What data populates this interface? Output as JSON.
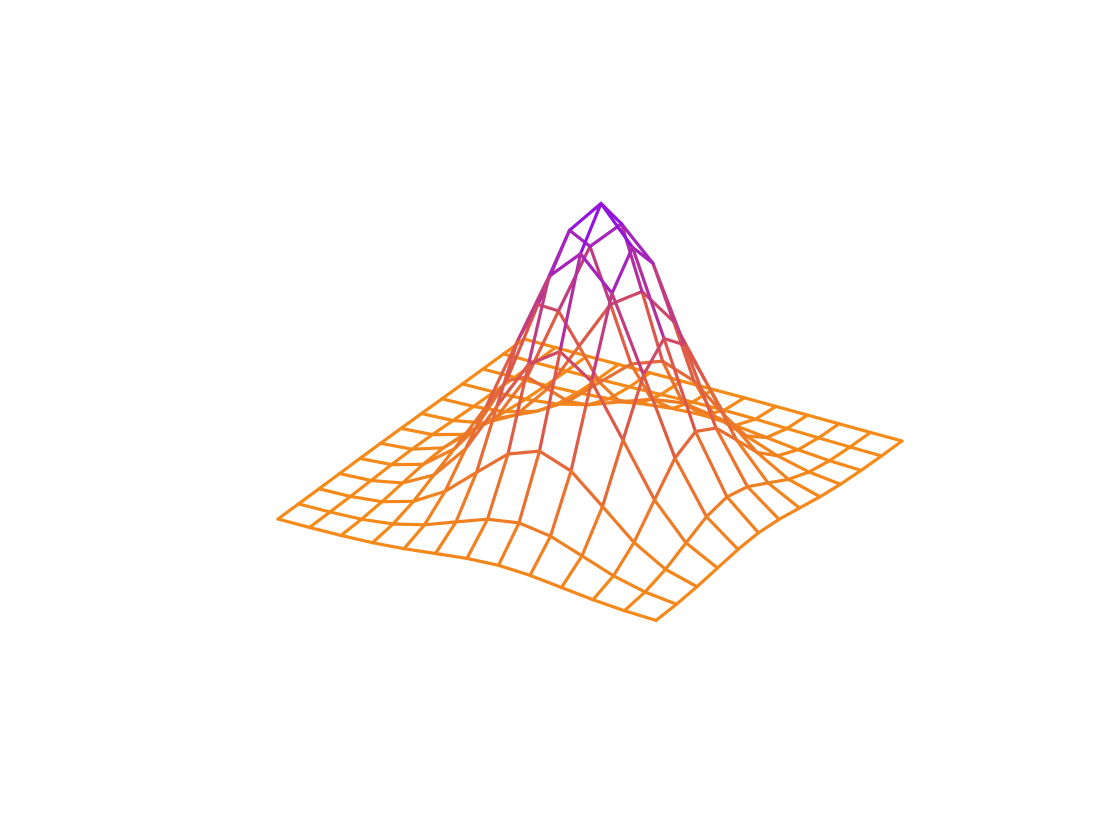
{
  "chart_data": {
    "type": "surface-wireframe",
    "title": "",
    "xlabel": "",
    "ylabel": "",
    "zlabel": "",
    "axes_visible": false,
    "grid": false,
    "legend": "none",
    "surface": {
      "function": "gaussian bump",
      "x_range": [
        -3,
        3
      ],
      "y_range": [
        -3,
        3
      ],
      "grid_count": 13,
      "peak_value": 1.0,
      "peak_location": [
        0.5,
        0.5
      ],
      "spread": 1.0
    },
    "colormap": {
      "low": "#f58a18",
      "mid": "#d9534f",
      "high": "#8a0cf0"
    }
  }
}
